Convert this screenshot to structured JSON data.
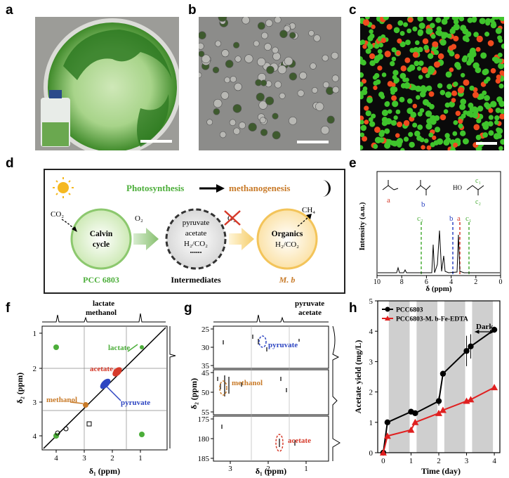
{
  "panel_labels": {
    "a": "a",
    "b": "b",
    "c": "c",
    "d": "d",
    "e": "e",
    "f": "f",
    "g": "g",
    "h": "h"
  },
  "colors": {
    "green": "#4cae3a",
    "orange": "#c87a28",
    "red": "#d63a2a",
    "blue": "#2e46c2",
    "gray_band": "#cfcfcf",
    "black": "#000000"
  },
  "panel_d": {
    "photosynthesis": "Photosynthesis",
    "methanogenesis": "methanogenesis",
    "co2": "CO₂",
    "o2": "O₂",
    "o2_crossed": "O₂",
    "ch4": "CH₄",
    "calvin_line1": "Calvin",
    "calvin_line2": "cycle",
    "inter_line1": "pyruvate",
    "inter_line2": "acetate",
    "inter_line3": "H₂/CO₂",
    "inter_line4": "••••••",
    "org_line1": "Organics",
    "org_line2": "H₂/CO₂",
    "pcc": "PCC 6803",
    "intermediates": "Intermediates",
    "mb": "M. b",
    "sun_icon": "sun-icon",
    "moon_icon": "moon-icon"
  },
  "panel_e": {
    "ylabel": "Intensity (a.u.)",
    "xlabel": "δ (ppm)",
    "ticks": [
      "10",
      "8",
      "6",
      "4",
      "2",
      "0"
    ],
    "mol_a": "a",
    "mol_b": "b",
    "mol_c1": "c₁",
    "mol_c2": "c₂",
    "ho": "HO",
    "peak_labels": [
      "c₂",
      "b",
      "a",
      "c₁"
    ]
  },
  "panel_f": {
    "top1": "lactate",
    "top2": "methanol",
    "ylabel": "δ₂ (ppm)",
    "xlabel": "δ₁ (ppm)",
    "xticks": [
      "4",
      "3",
      "2",
      "1"
    ],
    "yticks": [
      "1",
      "2",
      "3",
      "4"
    ],
    "lactate": "lactate",
    "acetate": "acetate",
    "methanol": "methanol",
    "pyruvate": "pyruvate"
  },
  "panel_g": {
    "top1": "pyruvate",
    "top2": "acetate",
    "ylabel": "δ₂ (ppm)",
    "xlabel": "δ₁ (ppm)",
    "xticks": [
      "3",
      "2",
      "1"
    ],
    "yticks1": [
      "25",
      "30",
      "35"
    ],
    "yticks2": [
      "45",
      "50",
      "55"
    ],
    "yticks3": [
      "175",
      "180",
      "185"
    ],
    "pyruvate": "pyruvate",
    "methanol": "methanol",
    "acetate": "acetate"
  },
  "chart_data": {
    "type": "line",
    "xlabel": "Time (day)",
    "ylabel": "Acetate yield (mg/L)",
    "xlim": [
      -0.2,
      4.2
    ],
    "ylim": [
      0,
      5
    ],
    "xticks": [
      0,
      1,
      2,
      3,
      4
    ],
    "yticks": [
      0,
      1,
      2,
      3,
      4,
      5
    ],
    "legend_position": "top-left",
    "annotation": "Dark",
    "dark_periods": [
      [
        0.2,
        0.95
      ],
      [
        1.2,
        1.95
      ],
      [
        2.2,
        2.95
      ],
      [
        3.2,
        3.95
      ]
    ],
    "series": [
      {
        "name": "PCC6803",
        "color": "#000000",
        "marker": "circle",
        "x": [
          0,
          0.15,
          1,
          1.15,
          2,
          2.15,
          3,
          3.15,
          4
        ],
        "y": [
          0,
          1.0,
          1.35,
          1.3,
          1.7,
          2.6,
          3.35,
          3.5,
          4.05
        ],
        "err": [
          0,
          0.05,
          0.05,
          0.05,
          0.15,
          0.1,
          0.5,
          0.4,
          0.1
        ]
      },
      {
        "name": "PCC6803-M. b-Fe-EDTA",
        "color": "#e02020",
        "marker": "triangle",
        "x": [
          0,
          0.15,
          1,
          1.15,
          2,
          2.15,
          3,
          3.15,
          4
        ],
        "y": [
          0,
          0.55,
          0.75,
          1.0,
          1.3,
          1.4,
          1.7,
          1.75,
          2.15
        ],
        "err": [
          0,
          0.05,
          0.05,
          0.05,
          0.05,
          0.05,
          0.08,
          0.08,
          0.08
        ]
      }
    ]
  }
}
